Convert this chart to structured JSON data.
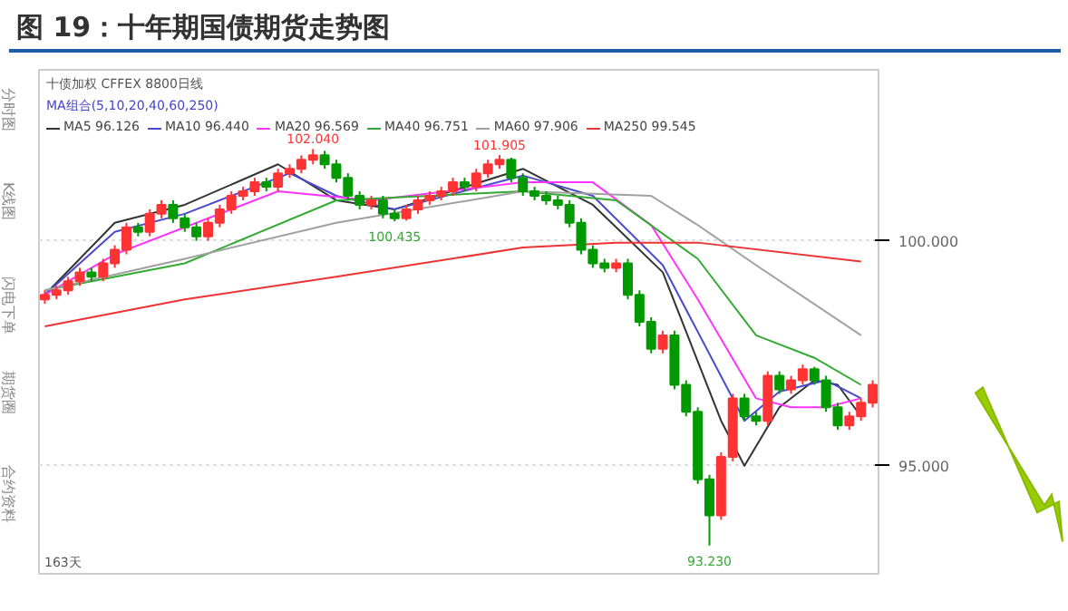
{
  "chart_data": {
    "type": "candlestick",
    "title": "图 19：十年期国债期货走势图",
    "legend_title": "MA组合(5,10,20,40,60,250)",
    "categories": [
      null,
      null,
      null,
      null,
      null,
      null,
      null,
      null,
      null,
      null,
      null,
      null,
      null,
      null,
      null,
      null,
      null,
      null,
      null,
      null,
      null,
      null,
      null,
      null,
      null,
      null,
      null,
      null,
      null,
      null,
      null,
      null,
      null,
      null,
      null,
      null,
      null,
      null,
      null,
      null,
      null,
      null,
      null,
      null,
      null,
      null,
      null,
      null,
      null,
      null,
      null,
      null,
      null,
      null,
      null,
      null,
      null,
      null,
      null,
      null,
      null,
      null,
      null,
      null,
      null,
      null,
      null,
      null,
      null,
      null,
      null,
      null
    ],
    "ohlc": [
      [
        98.7,
        98.9,
        98.6,
        98.8
      ],
      [
        98.8,
        99.0,
        98.7,
        98.9
      ],
      [
        98.9,
        99.2,
        98.8,
        99.1
      ],
      [
        99.1,
        99.4,
        99.0,
        99.3
      ],
      [
        99.3,
        99.4,
        99.1,
        99.2
      ],
      [
        99.2,
        99.6,
        99.1,
        99.5
      ],
      [
        99.5,
        99.9,
        99.4,
        99.8
      ],
      [
        99.8,
        100.4,
        99.7,
        100.3
      ],
      [
        100.3,
        100.4,
        100.1,
        100.2
      ],
      [
        100.2,
        100.7,
        100.1,
        100.6
      ],
      [
        100.6,
        100.9,
        100.5,
        100.8
      ],
      [
        100.8,
        100.9,
        100.4,
        100.5
      ],
      [
        100.5,
        100.6,
        100.2,
        100.3
      ],
      [
        100.3,
        100.4,
        100.0,
        100.1
      ],
      [
        100.1,
        100.5,
        100.0,
        100.4
      ],
      [
        100.4,
        100.8,
        100.3,
        100.7
      ],
      [
        100.7,
        101.1,
        100.6,
        101.0
      ],
      [
        101.0,
        101.2,
        100.9,
        101.1
      ],
      [
        101.1,
        101.4,
        101.0,
        101.3
      ],
      [
        101.3,
        101.4,
        101.1,
        101.2
      ],
      [
        101.2,
        101.6,
        101.1,
        101.5
      ],
      [
        101.5,
        101.7,
        101.4,
        101.6
      ],
      [
        101.6,
        101.9,
        101.5,
        101.8
      ],
      [
        101.8,
        102.04,
        101.7,
        101.9
      ],
      [
        101.9,
        102.0,
        101.6,
        101.7
      ],
      [
        101.7,
        101.8,
        101.3,
        101.4
      ],
      [
        101.4,
        101.5,
        100.9,
        101.0
      ],
      [
        101.0,
        101.1,
        100.7,
        100.8
      ],
      [
        100.8,
        101.0,
        100.7,
        100.9
      ],
      [
        100.9,
        101.0,
        100.5,
        100.6
      ],
      [
        100.6,
        100.7,
        100.435,
        100.5
      ],
      [
        100.5,
        100.8,
        100.45,
        100.7
      ],
      [
        100.7,
        101.0,
        100.6,
        100.9
      ],
      [
        100.9,
        101.1,
        100.8,
        101.0
      ],
      [
        101.0,
        101.2,
        100.9,
        101.1
      ],
      [
        101.1,
        101.4,
        101.0,
        101.3
      ],
      [
        101.3,
        101.4,
        101.1,
        101.2
      ],
      [
        101.2,
        101.6,
        101.1,
        101.5
      ],
      [
        101.5,
        101.8,
        101.4,
        101.7
      ],
      [
        101.7,
        101.905,
        101.6,
        101.8
      ],
      [
        101.8,
        101.85,
        101.3,
        101.4
      ],
      [
        101.4,
        101.5,
        101.0,
        101.1
      ],
      [
        101.1,
        101.2,
        100.9,
        101.0
      ],
      [
        101.0,
        101.1,
        100.8,
        100.9
      ],
      [
        100.9,
        101.0,
        100.7,
        100.8
      ],
      [
        100.8,
        100.9,
        100.3,
        100.4
      ],
      [
        100.4,
        100.5,
        99.7,
        99.8
      ],
      [
        99.8,
        99.9,
        99.4,
        99.5
      ],
      [
        99.5,
        99.6,
        99.3,
        99.4
      ],
      [
        99.4,
        99.6,
        99.3,
        99.5
      ],
      [
        99.5,
        99.6,
        98.7,
        98.8
      ],
      [
        98.8,
        98.9,
        98.1,
        98.2
      ],
      [
        98.2,
        98.3,
        97.5,
        97.6
      ],
      [
        97.6,
        98.0,
        97.5,
        97.9
      ],
      [
        97.9,
        98.0,
        96.7,
        96.8
      ],
      [
        96.8,
        96.9,
        96.1,
        96.2
      ],
      [
        96.2,
        96.3,
        94.6,
        94.7
      ],
      [
        94.7,
        94.8,
        93.23,
        93.9
      ],
      [
        93.9,
        95.3,
        93.8,
        95.2
      ],
      [
        95.2,
        96.6,
        95.1,
        96.5
      ],
      [
        96.5,
        96.6,
        96.0,
        96.1
      ],
      [
        96.1,
        96.2,
        95.9,
        96.0
      ],
      [
        96.0,
        97.1,
        95.9,
        97.0
      ],
      [
        97.0,
        97.1,
        96.6,
        96.7
      ],
      [
        96.7,
        97.0,
        96.6,
        96.9
      ],
      [
        96.9,
        97.25,
        96.8,
        97.15
      ],
      [
        97.15,
        97.2,
        96.8,
        96.9
      ],
      [
        96.9,
        97.0,
        96.2,
        96.3
      ],
      [
        96.3,
        96.4,
        95.8,
        95.9
      ],
      [
        95.9,
        96.2,
        95.8,
        96.1
      ],
      [
        96.1,
        96.5,
        96.0,
        96.4
      ],
      [
        96.4,
        96.9,
        96.3,
        96.8
      ]
    ],
    "colors": [
      "#ff3333",
      "#ff3333",
      "#ff3333",
      "#ff3333",
      "#009900",
      "#ff3333",
      "#ff3333",
      "#ff3333",
      "#009900",
      "#ff3333",
      "#ff3333",
      "#009900",
      "#009900",
      "#009900",
      "#ff3333",
      "#ff3333",
      "#ff3333",
      "#ff3333",
      "#ff3333",
      "#009900",
      "#ff3333",
      "#ff3333",
      "#ff3333",
      "#ff3333",
      "#009900",
      "#009900",
      "#009900",
      "#009900",
      "#ff3333",
      "#009900",
      "#009900",
      "#ff3333",
      "#ff3333",
      "#ff3333",
      "#ff3333",
      "#ff3333",
      "#009900",
      "#ff3333",
      "#ff3333",
      "#ff3333",
      "#009900",
      "#009900",
      "#009900",
      "#009900",
      "#009900",
      "#009900",
      "#009900",
      "#009900",
      "#009900",
      "#ff3333",
      "#009900",
      "#009900",
      "#009900",
      "#ff3333",
      "#009900",
      "#009900",
      "#009900",
      "#009900",
      "#ff3333",
      "#ff3333",
      "#009900",
      "#009900",
      "#ff3333",
      "#009900",
      "#ff3333",
      "#ff3333",
      "#009900",
      "#009900",
      "#009900",
      "#ff3333",
      "#ff3333",
      "#ff3333"
    ],
    "series": [
      {
        "type": "line",
        "name": "MA5 96.126",
        "color": "#333333",
        "values": [
          98.8,
          null,
          null,
          null,
          null,
          null,
          100.4,
          null,
          null,
          null,
          null,
          null,
          100.8,
          null,
          null,
          null,
          null,
          null,
          null,
          null,
          101.7,
          null,
          null,
          null,
          null,
          100.9,
          null,
          null,
          null,
          null,
          100.7,
          null,
          null,
          null,
          null,
          null,
          null,
          null,
          null,
          null,
          null,
          101.6,
          null,
          null,
          null,
          null,
          null,
          100.8,
          null,
          null,
          null,
          null,
          null,
          99.3,
          null,
          null,
          null,
          null,
          96.0,
          null,
          95.0,
          null,
          null,
          96.3,
          null,
          null,
          96.9,
          null,
          96.8,
          null,
          96.1,
          null
        ]
      },
      {
        "type": "line",
        "name": "MA10 96.440",
        "color": "#4a4ad0",
        "values": [
          98.8,
          null,
          null,
          null,
          null,
          null,
          100.2,
          null,
          null,
          null,
          null,
          null,
          100.6,
          null,
          null,
          null,
          null,
          null,
          null,
          null,
          null,
          101.5,
          null,
          null,
          null,
          101.0,
          null,
          null,
          null,
          null,
          100.7,
          null,
          null,
          null,
          null,
          null,
          null,
          null,
          null,
          null,
          null,
          101.45,
          null,
          null,
          null,
          null,
          null,
          101.0,
          null,
          null,
          null,
          null,
          null,
          99.46,
          null,
          null,
          null,
          null,
          null,
          null,
          96.0,
          null,
          null,
          96.65,
          null,
          null,
          null,
          96.9,
          null,
          null,
          96.5,
          null
        ]
      },
      {
        "type": "line",
        "name": "MA20 96.569",
        "color": "#ff33ff",
        "values": [
          98.8,
          null,
          null,
          null,
          null,
          null,
          99.7,
          null,
          null,
          null,
          null,
          null,
          100.3,
          null,
          null,
          null,
          null,
          null,
          null,
          null,
          101.1,
          null,
          null,
          null,
          null,
          null,
          null,
          null,
          100.9,
          null,
          null,
          null,
          null,
          null,
          null,
          null,
          null,
          null,
          null,
          null,
          null,
          101.3,
          null,
          null,
          null,
          null,
          null,
          101.3,
          null,
          null,
          null,
          null,
          100.35,
          null,
          null,
          null,
          98.7,
          null,
          null,
          null,
          null,
          96.5,
          null,
          null,
          96.3,
          null,
          null,
          96.3,
          null,
          null,
          96.5,
          null
        ]
      },
      {
        "type": "line",
        "name": "MA40 96.751",
        "color": "#33aa33",
        "values": [
          98.9,
          null,
          null,
          null,
          null,
          null,
          null,
          null,
          null,
          null,
          null,
          null,
          99.5,
          null,
          null,
          null,
          null,
          null,
          null,
          null,
          null,
          null,
          null,
          null,
          null,
          100.9,
          null,
          null,
          null,
          null,
          null,
          null,
          null,
          null,
          null,
          null,
          null,
          null,
          null,
          null,
          null,
          101.1,
          null,
          null,
          null,
          null,
          null,
          null,
          null,
          100.9,
          null,
          null,
          null,
          null,
          null,
          null,
          99.6,
          null,
          null,
          null,
          null,
          97.9,
          null,
          null,
          null,
          null,
          97.4,
          null,
          null,
          null,
          96.8,
          null
        ]
      },
      {
        "type": "line",
        "name": "MA60 97.906",
        "color": "#a0a0a0",
        "values": [
          98.9,
          null,
          null,
          null,
          null,
          null,
          null,
          null,
          null,
          null,
          null,
          null,
          99.6,
          null,
          null,
          null,
          null,
          null,
          null,
          null,
          null,
          null,
          null,
          null,
          null,
          100.4,
          null,
          null,
          null,
          null,
          null,
          null,
          null,
          null,
          null,
          null,
          null,
          null,
          null,
          null,
          null,
          101.1,
          null,
          null,
          null,
          null,
          null,
          null,
          null,
          null,
          null,
          null,
          101.0,
          null,
          null,
          null,
          100.35,
          null,
          null,
          null,
          null,
          99.46,
          null,
          null,
          null,
          null,
          null,
          null,
          null,
          null,
          97.9,
          null
        ]
      },
      {
        "type": "line",
        "name": "MA250 99.545",
        "color": "#ee3333",
        "values": [
          98.1,
          null,
          null,
          null,
          null,
          null,
          null,
          null,
          null,
          null,
          null,
          null,
          98.7,
          null,
          null,
          null,
          null,
          null,
          null,
          null,
          null,
          null,
          null,
          null,
          null,
          99.2,
          null,
          null,
          null,
          null,
          null,
          null,
          null,
          null,
          null,
          null,
          null,
          null,
          null,
          null,
          null,
          99.85,
          null,
          null,
          null,
          null,
          null,
          null,
          null,
          99.96,
          null,
          null,
          null,
          null,
          null,
          null,
          99.96,
          null,
          null,
          null,
          null,
          null,
          null,
          null,
          null,
          null,
          null,
          null,
          null,
          null,
          99.54,
          null
        ]
      }
    ],
    "ylim": [
      92.6,
      103.8
    ],
    "yticks": [
      {
        "value": 100,
        "label": "100.000"
      },
      {
        "value": 95,
        "label": "95.000"
      }
    ],
    "tick_labels": "y",
    "grid": "y",
    "legend": "top",
    "annotations": [
      {
        "text": "102.040",
        "y": 102.04
      },
      {
        "text": "101.905",
        "y": 101.905
      },
      {
        "text": "100.435",
        "y": 100.435
      },
      {
        "text": "93.230",
        "y": 93.23
      },
      "十债加权 CFFEX 8800日线",
      "分时图",
      "K线图",
      "闪电下单",
      "期货圈",
      "合约资料",
      "163天"
    ]
  }
}
